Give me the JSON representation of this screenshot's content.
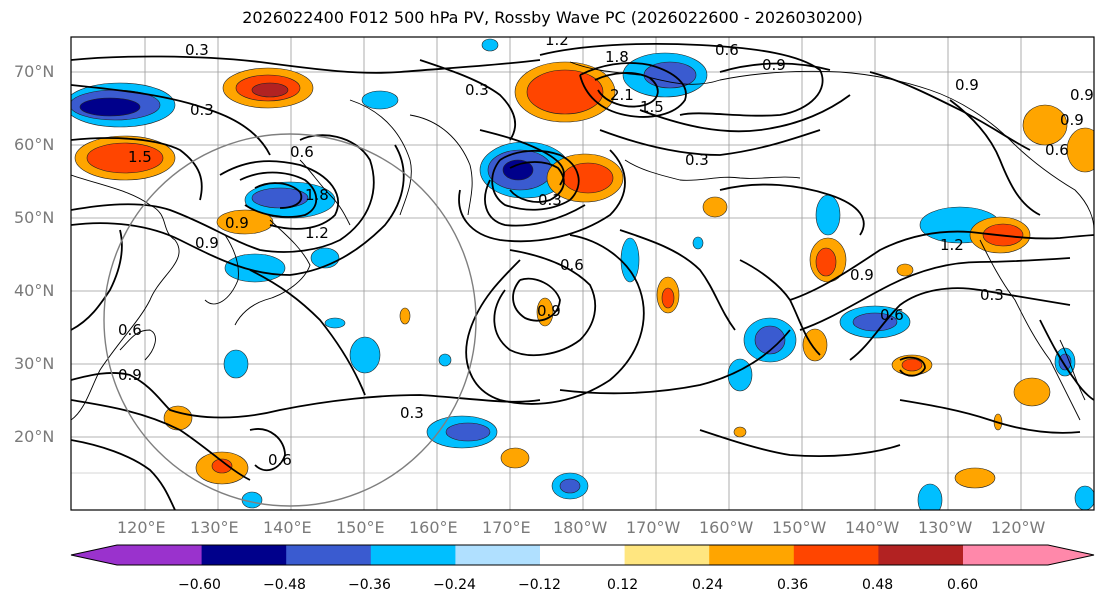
{
  "title": "2026022400 F012 500 hPa PV, Rossby Wave PC (2026022600 - 2026030200)",
  "lat_labels": [
    "70°N",
    "60°N",
    "50°N",
    "40°N",
    "30°N",
    "20°N"
  ],
  "lon_labels": [
    "120°E",
    "130°E",
    "140°E",
    "150°E",
    "160°E",
    "170°E",
    "180°W",
    "170°W",
    "160°W",
    "150°W",
    "140°W",
    "130°W",
    "120°W"
  ],
  "colorbar": {
    "ticks": [
      "−0.60",
      "−0.48",
      "−0.36",
      "−0.24",
      "−0.12",
      "0.12",
      "0.24",
      "0.36",
      "0.48",
      "0.60"
    ],
    "colors": [
      "#9a32cd",
      "#00008b",
      "#3a5bd0",
      "#00bfff",
      "#b0e0ff",
      "#ffffff",
      "#ffe680",
      "#ffa500",
      "#ff4500",
      "#b22222",
      "#ff88aa"
    ]
  },
  "contour_labels": [
    "0.3",
    "0.3",
    "0.6",
    "1.5",
    "0.9",
    "0.9",
    "0.6",
    "1.8",
    "1.2",
    "0.6",
    "0.9",
    "0.3",
    "1.2",
    "1.8",
    "2.1",
    "1.5",
    "0.9",
    "0.3",
    "0.9",
    "0.3",
    "0.6",
    "0.9",
    "1.2",
    "0.9",
    "0.6",
    "0.3",
    "0.9",
    "0.6",
    "0.3",
    "0.6",
    "0.9"
  ]
}
